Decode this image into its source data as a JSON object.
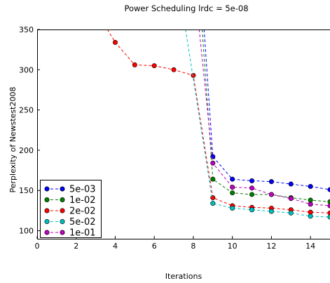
{
  "chart_data": {
    "type": "line",
    "title": "Power Scheduling lrdc = 5e-08",
    "xlabel": "Iterations",
    "ylabel": "Perplexity of Newstest2008",
    "xlim": [
      0,
      15
    ],
    "ylim": [
      90,
      350
    ],
    "xticks": [
      0,
      2,
      4,
      6,
      8,
      10,
      12,
      14
    ],
    "yticks": [
      100,
      150,
      200,
      250,
      300,
      350
    ],
    "grid": false,
    "legend_position": "lower-left",
    "series": [
      {
        "name": "5e-03",
        "color": "#0000ff",
        "x": [
          8.55,
          9,
          10,
          11,
          12,
          13,
          14,
          15
        ],
        "y": [
          350,
          192,
          164,
          162,
          161,
          158,
          155,
          151
        ],
        "markers": [
          false,
          true,
          true,
          true,
          true,
          true,
          true,
          true
        ]
      },
      {
        "name": "1e-02",
        "color": "#007f00",
        "x": [
          8.45,
          9,
          10,
          11,
          12,
          13,
          14,
          15
        ],
        "y": [
          350,
          164,
          147,
          145,
          145,
          141,
          138,
          136
        ],
        "markers": [
          false,
          true,
          true,
          true,
          true,
          true,
          true,
          true
        ]
      },
      {
        "name": "2e-02",
        "color": "#ff0000",
        "x": [
          3.6,
          4,
          5,
          6,
          7,
          8,
          9,
          10,
          11,
          12,
          13,
          14,
          15
        ],
        "y": [
          350,
          334,
          306,
          305,
          300,
          293,
          141,
          131,
          129,
          128,
          126,
          123,
          122
        ],
        "markers": [
          false,
          true,
          true,
          true,
          true,
          true,
          true,
          true,
          true,
          true,
          true,
          true,
          true
        ]
      },
      {
        "name": "5e-02",
        "color": "#00bfbf",
        "x": [
          7.6,
          9,
          10,
          11,
          12,
          13,
          14,
          15
        ],
        "y": [
          350,
          134,
          128,
          126,
          124,
          122,
          118,
          117
        ],
        "markers": [
          false,
          true,
          true,
          true,
          true,
          true,
          true,
          true
        ]
      },
      {
        "name": "1e-01",
        "color": "#bf00bf",
        "x": [
          8.3,
          9,
          10,
          11,
          12,
          13,
          14,
          15
        ],
        "y": [
          350,
          184,
          154,
          153,
          145,
          140,
          133,
          131
        ],
        "markers": [
          false,
          true,
          true,
          true,
          true,
          true,
          true,
          true
        ]
      }
    ]
  }
}
